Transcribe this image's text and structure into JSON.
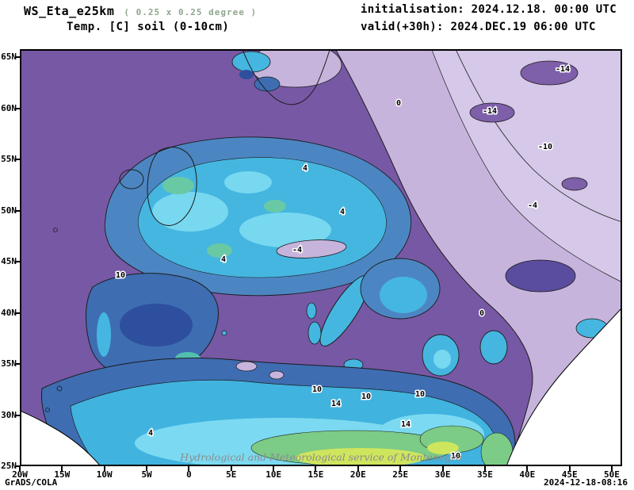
{
  "header": {
    "model": "WS_Eta_e25km",
    "resolution": "( 0.25 x 0.25 degree )",
    "variable": "Temp. [C] soil (0-10cm)",
    "init_label": "initialisation: 2024.12.18. 00:00 UTC",
    "valid_label": "valid(+30h): 2024.DEC.19 06:00 UTC"
  },
  "map": {
    "lat_labels": [
      "65N",
      "60N",
      "55N",
      "50N",
      "45N",
      "40N",
      "35N",
      "30N",
      "25N"
    ],
    "lon_labels": [
      "20W",
      "15W",
      "10W",
      "5W",
      "0",
      "5E",
      "10E",
      "15E",
      "20E",
      "25E",
      "30E",
      "35E",
      "40E",
      "45E",
      "50E"
    ],
    "watermark": "Hydrological and Meteorological service of Montenegro",
    "contour_levels_visible": [
      "-14",
      "-10",
      "-4",
      "0",
      "4",
      "10",
      "14"
    ]
  },
  "contour_labels": [
    "0",
    "4",
    "4",
    "4",
    "-4",
    "-4",
    "-10",
    "-14",
    "-14",
    "0",
    "10",
    "10",
    "14",
    "10",
    "10",
    "14",
    "4",
    "10"
  ],
  "footer": {
    "left": "GrADS/COLA",
    "right": "2024-12-18-08:16"
  },
  "colors": {
    "base_purple": "#7758a5",
    "lavender_cold": "#c7b4dc",
    "lavender_light": "#d6c8e8",
    "navy": "#2d4f9d",
    "blue": "#3e6db2",
    "steel_blue": "#4c86c2",
    "cyan": "#45b6e0",
    "bright_cyan": "#77d8f0",
    "teal": "#69c9a4",
    "green": "#7ccb86",
    "yellow_green": "#cee55e"
  }
}
